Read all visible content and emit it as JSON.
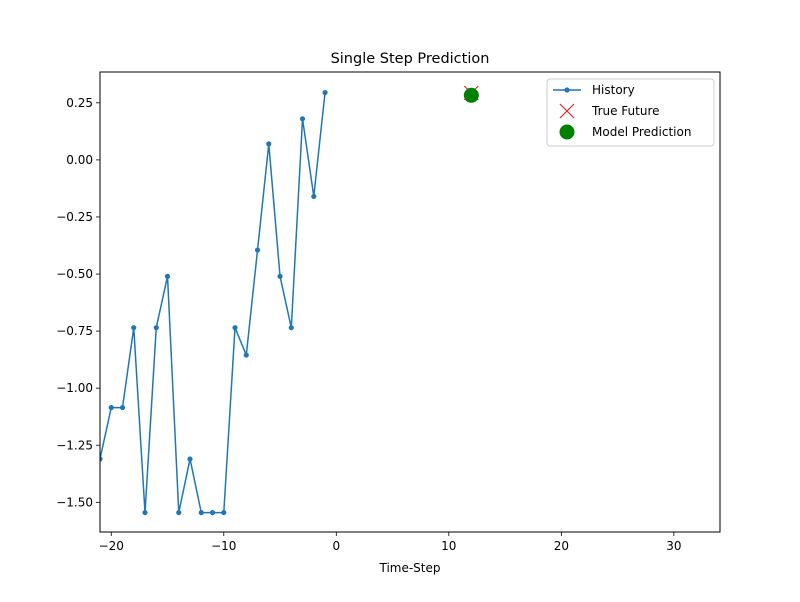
{
  "chart_data": {
    "type": "line",
    "title": "Single Step Prediction",
    "xlabel": "Time-Step",
    "ylabel": "",
    "xlim": [
      -21,
      34.1
    ],
    "ylim": [
      -1.63,
      0.385
    ],
    "grid": false,
    "legend_position": "top-right",
    "x_ticks": [
      -20,
      -10,
      0,
      10,
      20,
      30
    ],
    "x_tick_labels": [
      "−20",
      "−10",
      "0",
      "10",
      "20",
      "30"
    ],
    "y_ticks": [
      0.25,
      0.0,
      -0.25,
      -0.5,
      -0.75,
      -1.0,
      -1.25,
      -1.5
    ],
    "y_tick_labels": [
      "0.25",
      "0.00",
      "−0.25",
      "−0.50",
      "−0.75",
      "−1.00",
      "−1.25",
      "−1.50"
    ],
    "series": [
      {
        "name": "History",
        "kind": "line-dot",
        "color": "#1f77b4",
        "x": [
          -21,
          -20,
          -19,
          -18,
          -17,
          -16,
          -15,
          -14,
          -13,
          -12,
          -11,
          -10,
          -9,
          -8,
          -7,
          -6,
          -5,
          -4,
          -3,
          -2,
          -1
        ],
        "y": [
          -1.31,
          -1.085,
          -1.085,
          -0.735,
          -1.545,
          -0.735,
          -0.51,
          -1.545,
          -1.31,
          -1.545,
          -1.545,
          -1.545,
          -0.735,
          -0.855,
          -0.395,
          0.07,
          -0.51,
          -0.735,
          0.18,
          -0.16,
          0.295
        ]
      },
      {
        "name": "True Future",
        "kind": "x-marker",
        "color": "#d62728",
        "x": [
          12
        ],
        "y": [
          0.293
        ]
      },
      {
        "name": "Model Prediction",
        "kind": "big-dot",
        "color": "#008000",
        "x": [
          12
        ],
        "y": [
          0.283
        ]
      }
    ]
  }
}
